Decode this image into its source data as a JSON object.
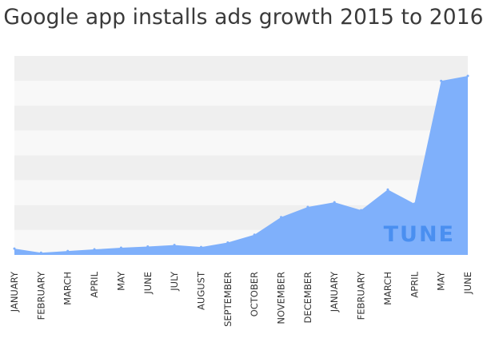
{
  "header": {
    "title": "Google app installs ads growth 2015 to 2016"
  },
  "brand": {
    "logo_text": "TUNE"
  },
  "colors": {
    "area_fill": "#7fb0fb",
    "band_dark": "#efefef",
    "band_light": "#f8f8f8",
    "logo": "#4a8ff0"
  },
  "chart_data": {
    "type": "area",
    "title": "Google app installs ads growth 2015 to 2016",
    "xlabel": "",
    "ylabel": "",
    "ylim": [
      0,
      100
    ],
    "grid": true,
    "categories": [
      "JANUARY",
      "FEBRUARY",
      "MARCH",
      "APRIL",
      "MAY",
      "JUNE",
      "JULY",
      "AUGUST",
      "SEPTEMBER",
      "OCTOBER",
      "NOVEMBER",
      "DECEMBER",
      "JANUARY",
      "FEBRUARY",
      "MARCH",
      "APRIL",
      "MAY",
      "JUNE"
    ],
    "series": [
      {
        "name": "Google app installs ads",
        "values": [
          3.5,
          1.2,
          2.2,
          3.1,
          4.0,
          4.7,
          5.5,
          4.4,
          6.9,
          11.3,
          21.1,
          26.8,
          29.4,
          25.0,
          36.5,
          28.6,
          97.2,
          100.0
        ]
      }
    ]
  }
}
